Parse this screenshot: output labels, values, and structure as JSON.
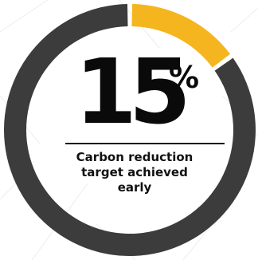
{
  "chart_data": {
    "type": "pie",
    "values": [
      15,
      85
    ],
    "colors": [
      "#f5b51f",
      "#3c3c3c"
    ],
    "center_value": "15",
    "center_unit": "%",
    "caption_lines": [
      "Carbon reduction",
      "target achieved",
      "early"
    ]
  },
  "colors": {
    "accent": "#f5b51f",
    "ring": "#3c3c3c",
    "text": "#0a0a0a",
    "background": "#ffffff"
  }
}
